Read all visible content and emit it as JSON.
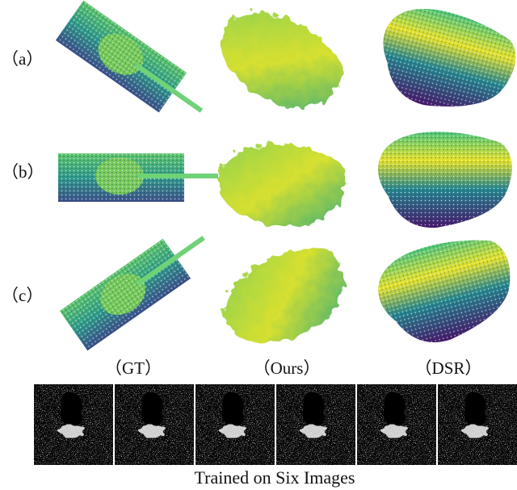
{
  "row_labels": [
    "（a）",
    "（b）",
    "（c）"
  ],
  "column_labels": [
    "（GT）",
    "（Ours）",
    "（DSR）"
  ],
  "caption": "Trained on Six Images"
}
